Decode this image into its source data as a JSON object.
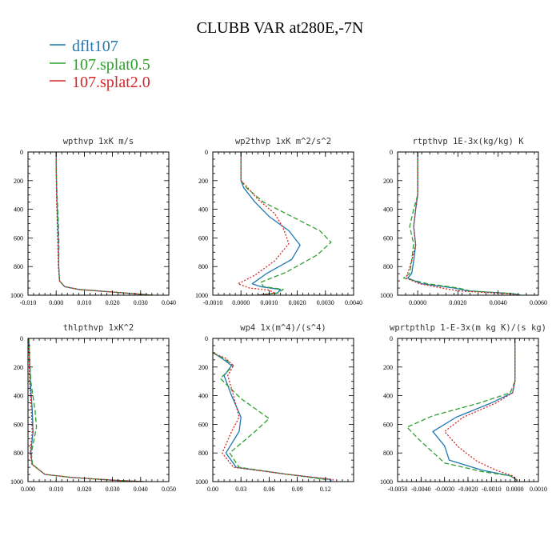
{
  "figure": {
    "title": "CLUBB VAR at280E,-7N",
    "legend": [
      {
        "label": "dflt107",
        "color": "#1f77b4"
      },
      {
        "label": "107.splat0.5",
        "color": "#2ca02c"
      },
      {
        "label": "107.splat2.0",
        "color": "#d62728"
      }
    ]
  },
  "chart_data": [
    {
      "type": "line",
      "title": "wpthvp 1xK m/s",
      "xlim": [
        -0.01,
        0.04
      ],
      "ylim": [
        1000,
        0
      ],
      "xticks": [
        "-0.010",
        "0.000",
        "0.010",
        "0.020",
        "0.030",
        "0.040"
      ],
      "xtick_values": [
        -0.01,
        0.0,
        0.01,
        0.02,
        0.03,
        0.04
      ],
      "yticks": [
        "0",
        "200",
        "400",
        "600",
        "800",
        "1000"
      ],
      "ytick_values": [
        0,
        200,
        400,
        600,
        800,
        1000
      ],
      "series": [
        {
          "color": "#1f77b4",
          "x": [
            0.0,
            0.0,
            0.0002,
            0.0006,
            0.0008,
            0.0009,
            0.0012,
            0.003,
            0.008,
            0.018,
            0.028,
            0.034
          ],
          "y": [
            0,
            100,
            300,
            500,
            650,
            800,
            900,
            940,
            960,
            975,
            990,
            1000
          ]
        },
        {
          "color": "#2ca02c",
          "x": [
            0.0,
            0.0,
            0.0003,
            0.0008,
            0.001,
            0.0009,
            0.0012,
            0.003,
            0.008,
            0.018,
            0.028,
            0.0345
          ],
          "y": [
            0,
            100,
            300,
            500,
            650,
            800,
            900,
            940,
            960,
            975,
            990,
            1000
          ]
        },
        {
          "color": "#d62728",
          "x": [
            0.0,
            0.0,
            0.0001,
            0.0004,
            0.0006,
            0.0008,
            0.0012,
            0.003,
            0.008,
            0.018,
            0.028,
            0.0335
          ],
          "y": [
            0,
            100,
            300,
            500,
            650,
            800,
            900,
            940,
            960,
            975,
            990,
            1000
          ]
        }
      ]
    },
    {
      "type": "line",
      "title": "wp2thvp 1xK m^2/s^2",
      "xlim": [
        -0.001,
        0.004
      ],
      "ylim": [
        1000,
        0
      ],
      "xticks": [
        "-0.0010",
        "0.0000",
        "0.0010",
        "0.0020",
        "0.0030",
        "0.0040"
      ],
      "xtick_values": [
        -0.001,
        0.0,
        0.001,
        0.002,
        0.003,
        0.004
      ],
      "yticks": [
        "0",
        "200",
        "400",
        "600",
        "800",
        "1000"
      ],
      "ytick_values": [
        0,
        200,
        400,
        600,
        800,
        1000
      ],
      "series": [
        {
          "color": "#1f77b4",
          "x": [
            0.0,
            0.0,
            0.0001,
            0.0005,
            0.001,
            0.0017,
            0.0021,
            0.0018,
            0.0009,
            0.0004,
            0.0007,
            0.0014,
            0.0013,
            0.0006
          ],
          "y": [
            0,
            200,
            250,
            350,
            450,
            550,
            650,
            750,
            850,
            920,
            940,
            960,
            985,
            1000
          ]
        },
        {
          "color": "#2ca02c",
          "x": [
            0.0,
            0.0,
            0.0002,
            0.0008,
            0.0018,
            0.0028,
            0.0032,
            0.0027,
            0.0016,
            0.0007,
            0.0008,
            0.0015,
            0.0013,
            0.0006
          ],
          "y": [
            0,
            200,
            250,
            350,
            450,
            550,
            630,
            720,
            840,
            910,
            940,
            960,
            985,
            1000
          ]
        },
        {
          "color": "#d62728",
          "x": [
            0.0,
            0.0,
            0.0002,
            0.0006,
            0.0012,
            0.0015,
            0.0017,
            0.0012,
            0.0005,
            -0.0001,
            0.0003,
            0.001,
            0.0012,
            0.0006
          ],
          "y": [
            0,
            200,
            240,
            330,
            430,
            530,
            640,
            760,
            860,
            920,
            950,
            965,
            985,
            1000
          ]
        }
      ]
    },
    {
      "type": "line",
      "title": "rtpthvp 1E-3x(kg/kg) K",
      "xlim": [
        -0.001,
        0.006
      ],
      "ylim": [
        1000,
        0
      ],
      "xticks": [
        "0.0000",
        "0.0020",
        "0.0040",
        "0.0060"
      ],
      "xtick_values": [
        0.0,
        0.002,
        0.004,
        0.006
      ],
      "yticks": [
        "0",
        "200",
        "400",
        "600",
        "800",
        "1000"
      ],
      "ytick_values": [
        0,
        200,
        400,
        600,
        800,
        1000
      ],
      "series": [
        {
          "color": "#1f77b4",
          "x": [
            0.0,
            0.0,
            -0.0001,
            -0.0002,
            -0.0001,
            -0.0002,
            -0.0003,
            -0.0005,
            0.0002,
            0.0018,
            0.0025,
            0.0048,
            0.0051
          ],
          "y": [
            0,
            300,
            400,
            520,
            650,
            760,
            850,
            880,
            920,
            950,
            970,
            990,
            1000
          ]
        },
        {
          "color": "#2ca02c",
          "x": [
            0.0,
            0.0,
            -0.0002,
            -0.0004,
            -0.0002,
            -0.0003,
            -0.0004,
            -0.0007,
            0.0005,
            0.002,
            0.0026,
            0.0048,
            0.0051
          ],
          "y": [
            0,
            300,
            400,
            520,
            640,
            760,
            850,
            880,
            920,
            950,
            970,
            990,
            1000
          ]
        },
        {
          "color": "#d62728",
          "x": [
            0.0,
            0.0,
            -0.0001,
            -0.0002,
            -0.0001,
            -0.0003,
            -0.0005,
            -0.0006,
            0.0001,
            0.0012,
            0.002,
            0.0045,
            0.005
          ],
          "y": [
            0,
            300,
            400,
            520,
            650,
            760,
            850,
            880,
            920,
            950,
            970,
            990,
            1000
          ]
        }
      ]
    },
    {
      "type": "line",
      "title": "thlpthvp 1xK^2",
      "xlim": [
        0.0,
        0.05
      ],
      "ylim": [
        1000,
        0
      ],
      "xticks": [
        "0.000",
        "0.010",
        "0.020",
        "0.030",
        "0.040",
        "0.050"
      ],
      "xtick_values": [
        0.0,
        0.01,
        0.02,
        0.03,
        0.04,
        0.05
      ],
      "yticks": [
        "0",
        "200",
        "400",
        "600",
        "800",
        "1000"
      ],
      "ytick_values": [
        0,
        200,
        400,
        600,
        800,
        1000
      ],
      "series": [
        {
          "color": "#1f77b4",
          "x": [
            0.0003,
            0.0005,
            0.0008,
            0.0015,
            0.0018,
            0.001,
            0.0015,
            0.006,
            0.015,
            0.03,
            0.041
          ],
          "y": [
            0,
            120,
            300,
            500,
            650,
            800,
            880,
            950,
            970,
            990,
            1000
          ]
        },
        {
          "color": "#2ca02c",
          "x": [
            0.0003,
            0.0005,
            0.001,
            0.0025,
            0.003,
            0.0012,
            0.0016,
            0.006,
            0.015,
            0.03,
            0.041
          ],
          "y": [
            0,
            120,
            300,
            500,
            620,
            800,
            880,
            950,
            970,
            990,
            1000
          ]
        },
        {
          "color": "#d62728",
          "x": [
            0.0002,
            0.0004,
            0.0006,
            0.0012,
            0.0015,
            0.0008,
            0.0014,
            0.006,
            0.015,
            0.03,
            0.041
          ],
          "y": [
            0,
            120,
            300,
            500,
            650,
            800,
            880,
            950,
            970,
            990,
            1000
          ]
        }
      ]
    },
    {
      "type": "line",
      "title": "wp4 1x(m^4)/(s^4)",
      "xlim": [
        0.0,
        0.15
      ],
      "ylim": [
        1000,
        0
      ],
      "xticks": [
        "0.00",
        "0.03",
        "0.06",
        "0.09",
        "0.12"
      ],
      "xtick_values": [
        0.0,
        0.03,
        0.06,
        0.09,
        0.12
      ],
      "yticks": [
        "0",
        "200",
        "400",
        "600",
        "800",
        "1000"
      ],
      "ytick_values": [
        0,
        200,
        400,
        600,
        800,
        1000
      ],
      "series": [
        {
          "color": "#1f77b4",
          "x": [
            0.0,
            0.01,
            0.02,
            0.012,
            0.02,
            0.03,
            0.028,
            0.014,
            0.025,
            0.08,
            0.125,
            0.125
          ],
          "y": [
            100,
            140,
            190,
            260,
            400,
            550,
            650,
            800,
            900,
            950,
            985,
            1000
          ]
        },
        {
          "color": "#2ca02c",
          "x": [
            0.0,
            0.012,
            0.022,
            0.008,
            0.03,
            0.06,
            0.045,
            0.018,
            0.028,
            0.08,
            0.12,
            0.12
          ],
          "y": [
            100,
            140,
            190,
            280,
            420,
            560,
            650,
            800,
            900,
            950,
            985,
            1000
          ]
        },
        {
          "color": "#d62728",
          "x": [
            0.0,
            0.014,
            0.022,
            0.016,
            0.022,
            0.028,
            0.02,
            0.01,
            0.022,
            0.08,
            0.128,
            0.128
          ],
          "y": [
            100,
            140,
            190,
            260,
            400,
            550,
            650,
            800,
            900,
            950,
            985,
            1000
          ]
        }
      ]
    },
    {
      "type": "line",
      "title": "wprtpthlp 1-E-3x(m kg K)/(s kg)",
      "xlim": [
        -0.005,
        0.001
      ],
      "ylim": [
        1000,
        0
      ],
      "xticks": [
        "-0.0050",
        "-0.0040",
        "-0.0030",
        "-0.0020",
        "-0.0010",
        "0.0000",
        "0.0010"
      ],
      "xtick_values": [
        -0.005,
        -0.004,
        -0.003,
        -0.002,
        -0.001,
        0.0,
        0.001
      ],
      "yticks": [
        "0",
        "200",
        "400",
        "600",
        "800",
        "1000"
      ],
      "ytick_values": [
        0,
        200,
        400,
        600,
        800,
        1000
      ],
      "series": [
        {
          "color": "#1f77b4",
          "x": [
            0.0,
            0.0,
            -0.0001,
            -0.001,
            -0.0025,
            -0.0035,
            -0.003,
            -0.0028,
            -0.0014,
            -0.0002,
            0.0001,
            0.0
          ],
          "y": [
            0,
            300,
            380,
            450,
            550,
            650,
            750,
            850,
            920,
            960,
            990,
            1000
          ]
        },
        {
          "color": "#2ca02c",
          "x": [
            0.0,
            0.0,
            -0.0002,
            -0.0015,
            -0.0035,
            -0.0046,
            -0.004,
            -0.003,
            -0.0014,
            -0.0002,
            0.0001,
            0.0
          ],
          "y": [
            0,
            300,
            380,
            450,
            540,
            620,
            720,
            870,
            930,
            960,
            990,
            1000
          ]
        },
        {
          "color": "#d62728",
          "x": [
            0.0,
            0.0,
            -0.0001,
            -0.0008,
            -0.0022,
            -0.003,
            -0.0024,
            -0.0016,
            -0.0008,
            -0.0001,
            0.0001,
            0.0
          ],
          "y": [
            0,
            300,
            380,
            450,
            550,
            650,
            760,
            860,
            920,
            960,
            990,
            1000
          ]
        }
      ]
    }
  ]
}
